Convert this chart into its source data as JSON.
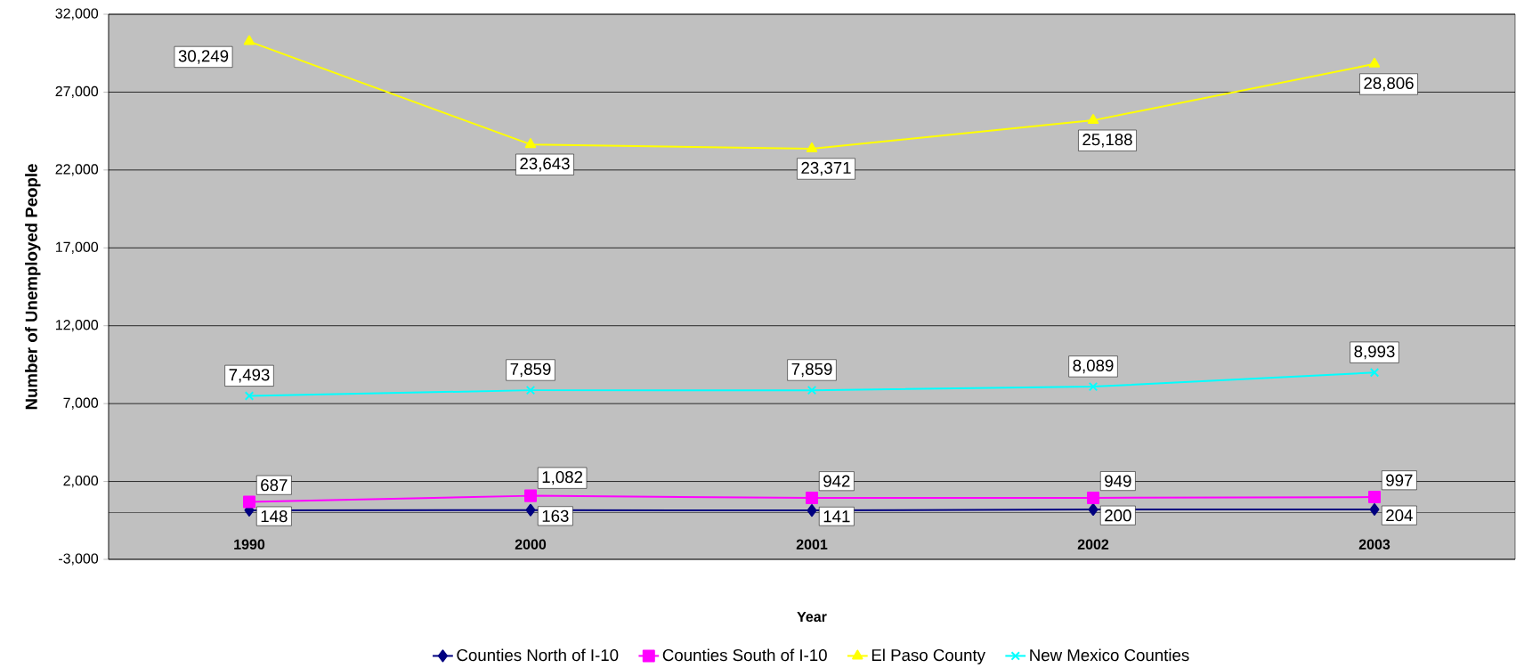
{
  "chart_data": {
    "type": "line",
    "xlabel": "Year",
    "ylabel": "Number of Unemployed People",
    "categories": [
      "1990",
      "2000",
      "2001",
      "2002",
      "2003"
    ],
    "ylim": [
      -3000,
      32000
    ],
    "yticks": [
      {
        "value": -3000,
        "label": "-3,000"
      },
      {
        "value": 2000,
        "label": "2,000"
      },
      {
        "value": 7000,
        "label": "7,000"
      },
      {
        "value": 12000,
        "label": "12,000"
      },
      {
        "value": 17000,
        "label": "17,000"
      },
      {
        "value": 22000,
        "label": "22,000"
      },
      {
        "value": 27000,
        "label": "27,000"
      },
      {
        "value": 32000,
        "label": "32,000"
      }
    ],
    "grid": "y",
    "legend": "bottom",
    "series": [
      {
        "name": "Counties North of I-10",
        "color": "#000080",
        "marker": "diamond",
        "values": [
          148,
          163,
          141,
          200,
          204
        ],
        "value_labels": [
          "148",
          "163",
          "141",
          "200",
          "204"
        ]
      },
      {
        "name": "Counties South of I-10",
        "color": "#ff00ff",
        "marker": "square",
        "values": [
          687,
          1082,
          942,
          949,
          997
        ],
        "value_labels": [
          "687",
          "1,082",
          "942",
          "949",
          "997"
        ]
      },
      {
        "name": "El Paso County",
        "color": "#ffff00",
        "marker": "triangle",
        "values": [
          30249,
          23643,
          23371,
          25188,
          28806
        ],
        "value_labels": [
          "30,249",
          "23,643",
          "23,371",
          "25,188",
          "28,806"
        ]
      },
      {
        "name": "New Mexico Counties",
        "color": "#00ffff",
        "marker": "cross",
        "values": [
          7493,
          7859,
          7859,
          8089,
          8993
        ],
        "value_labels": [
          "7,493",
          "7,859",
          "7,859",
          "8,089",
          "8,993"
        ]
      }
    ]
  }
}
